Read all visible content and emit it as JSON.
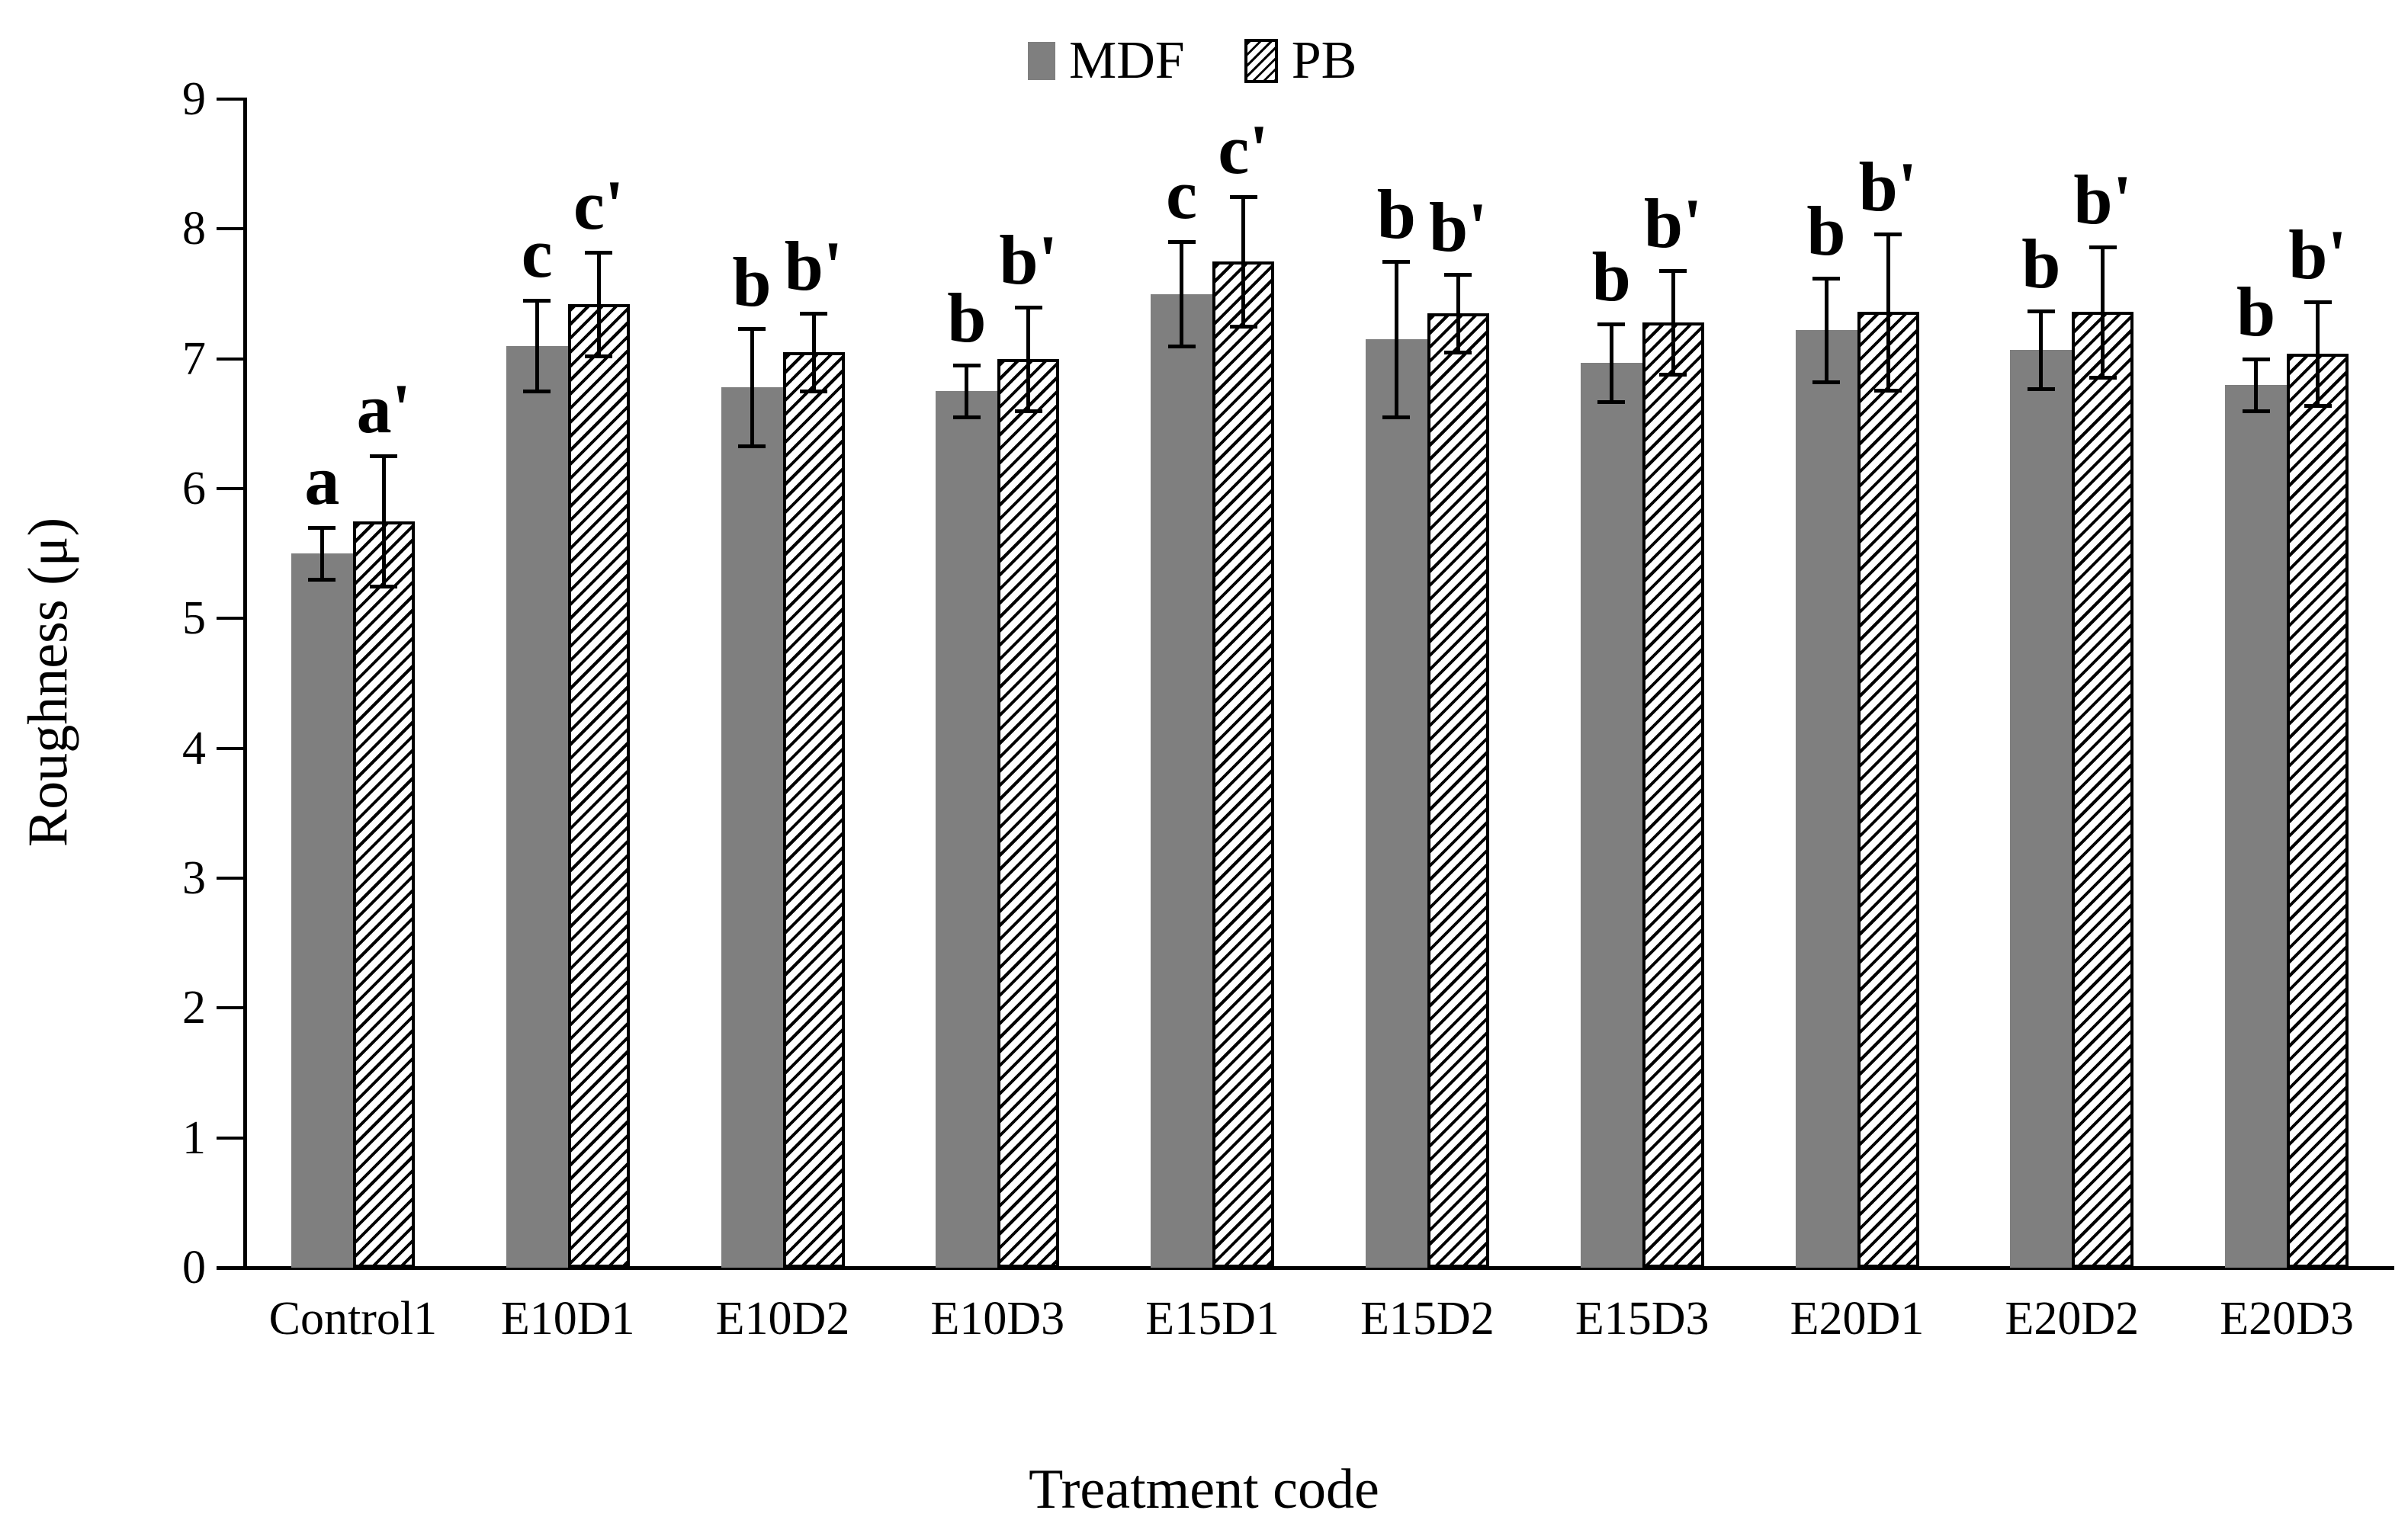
{
  "chart_data": {
    "type": "bar",
    "title": "",
    "xlabel": "Treatment code",
    "ylabel": "Roughness (μ)",
    "ylim": [
      0,
      9
    ],
    "yticks": [
      0,
      1,
      2,
      3,
      4,
      5,
      6,
      7,
      8,
      9
    ],
    "grid": false,
    "legend_position": "top-center",
    "categories": [
      "Control1",
      "E10D1",
      "E10D2",
      "E10D3",
      "E15D1",
      "E15D2",
      "E15D3",
      "E20D1",
      "E20D2",
      "E20D3"
    ],
    "series": [
      {
        "name": "MDF",
        "style": "solid",
        "color": "#7f7f7f",
        "values": [
          5.5,
          7.1,
          6.78,
          6.75,
          7.5,
          7.15,
          6.97,
          7.22,
          7.07,
          6.8
        ],
        "errors": [
          0.2,
          0.35,
          0.45,
          0.2,
          0.4,
          0.6,
          0.3,
          0.4,
          0.3,
          0.2
        ],
        "letters": [
          "a",
          "c",
          "b",
          "b",
          "c",
          "b",
          "b",
          "b",
          "b",
          "b"
        ]
      },
      {
        "name": "PB",
        "style": "hatched",
        "color": "#ffffff",
        "values": [
          5.75,
          7.42,
          7.05,
          7.0,
          7.75,
          7.35,
          7.28,
          7.36,
          7.36,
          7.04
        ],
        "errors": [
          0.5,
          0.4,
          0.3,
          0.4,
          0.5,
          0.3,
          0.4,
          0.6,
          0.5,
          0.4
        ],
        "letters": [
          "a'",
          "c'",
          "b'",
          "b'",
          "c'",
          "b'",
          "b'",
          "b'",
          "b'",
          "b'"
        ]
      }
    ]
  },
  "colors": {
    "mdf_bar": "#7f7f7f",
    "pb_bar": "#ffffff",
    "axis": "#000000",
    "background": "#ffffff"
  }
}
